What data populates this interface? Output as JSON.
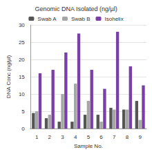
{
  "chart_data": {
    "type": "bar",
    "title": "Genomic DNA Isolated (ng/µl)",
    "x_label": "Sample No.",
    "y_label": "DNA Conc (ng/µl)",
    "categories": [
      "1",
      "2",
      "3",
      "4",
      "5",
      "6",
      "7",
      "8",
      "9"
    ],
    "series": [
      {
        "name": "Swab A",
        "color": "#555555",
        "values": [
          4.5,
          3,
          2,
          2,
          4,
          4,
          6,
          5.5,
          8
        ]
      },
      {
        "name": "Swab B",
        "color": "#a6a6a6",
        "values": [
          5,
          4,
          10,
          13,
          8,
          2,
          5.5,
          5.5,
          2.5
        ]
      },
      {
        "name": "Isohelix",
        "color": "#7b3fa8",
        "values": [
          16,
          17,
          22,
          27.5,
          17,
          11.5,
          28,
          18,
          12.5
        ]
      }
    ],
    "ylim": [
      0,
      30
    ],
    "yticks": [
      0,
      5,
      10,
      15,
      20,
      25,
      30
    ],
    "grid": true,
    "legend": "top"
  }
}
